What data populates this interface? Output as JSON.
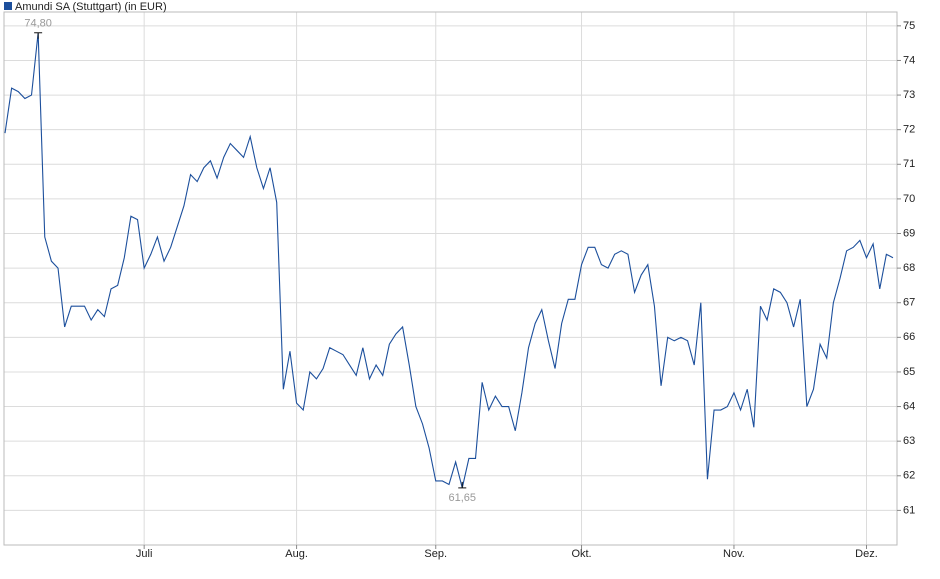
{
  "chart_data": {
    "type": "line",
    "categories": [
      null,
      null,
      null,
      null,
      null,
      null,
      null,
      null,
      null,
      null,
      null,
      null,
      null,
      null,
      null,
      null,
      null,
      null,
      null,
      null,
      null,
      "Juli",
      null,
      null,
      null,
      null,
      null,
      null,
      null,
      null,
      null,
      null,
      null,
      null,
      null,
      null,
      null,
      null,
      null,
      null,
      null,
      null,
      null,
      null,
      "Aug.",
      null,
      null,
      null,
      null,
      null,
      null,
      null,
      null,
      null,
      null,
      null,
      null,
      null,
      null,
      null,
      null,
      null,
      null,
      null,
      null,
      "Sep.",
      null,
      null,
      null,
      null,
      null,
      null,
      null,
      null,
      null,
      null,
      null,
      null,
      null,
      null,
      null,
      null,
      null,
      null,
      null,
      null,
      null,
      "Okt.",
      null,
      null,
      null,
      null,
      null,
      null,
      null,
      null,
      null,
      null,
      null,
      null,
      null,
      null,
      null,
      null,
      null,
      null,
      null,
      null,
      null,
      null,
      "Nov.",
      null,
      null,
      null,
      null,
      null,
      null,
      null,
      null,
      null,
      null,
      null,
      null,
      null,
      null,
      null,
      null,
      null,
      null,
      null,
      "Dez.",
      null,
      null,
      null,
      null
    ],
    "series": [
      {
        "name": "Amundi SA (Stuttgart) (in EUR)",
        "color": "#1c4f9c",
        "values": [
          71.9,
          73.2,
          73.1,
          72.9,
          73.0,
          74.8,
          68.9,
          68.2,
          68.0,
          66.3,
          66.9,
          66.9,
          66.9,
          66.5,
          66.8,
          66.6,
          67.4,
          67.5,
          68.3,
          69.5,
          69.4,
          68.0,
          68.4,
          68.9,
          68.2,
          68.6,
          69.2,
          69.8,
          70.7,
          70.5,
          70.9,
          71.1,
          70.6,
          71.2,
          71.6,
          71.4,
          71.2,
          71.8,
          70.9,
          70.3,
          70.9,
          69.9,
          64.5,
          65.6,
          64.1,
          63.9,
          65.0,
          64.8,
          65.1,
          65.7,
          65.6,
          65.5,
          65.2,
          64.9,
          65.7,
          64.8,
          65.2,
          64.9,
          65.8,
          66.1,
          66.3,
          65.2,
          64.0,
          63.5,
          62.8,
          61.85,
          61.85,
          61.75,
          62.4,
          61.65,
          62.5,
          62.5,
          64.7,
          63.9,
          64.3,
          64.0,
          64.0,
          63.3,
          64.4,
          65.7,
          66.4,
          66.8,
          65.9,
          65.1,
          66.4,
          67.1,
          67.1,
          68.1,
          68.6,
          68.6,
          68.1,
          68.0,
          68.4,
          68.5,
          68.4,
          67.3,
          67.8,
          68.1,
          66.9,
          64.6,
          66.0,
          65.9,
          66.0,
          65.9,
          65.2,
          67.0,
          61.9,
          63.9,
          63.9,
          64.0,
          64.4,
          63.9,
          64.5,
          63.4,
          66.9,
          66.5,
          67.4,
          67.3,
          67.0,
          66.3,
          67.1,
          64.0,
          64.5,
          65.8,
          65.4,
          67.0,
          67.7,
          68.5,
          68.6,
          68.8,
          68.3,
          68.7,
          67.4,
          68.4,
          68.3
        ],
        "value_labels": [
          null,
          null,
          null,
          null,
          null,
          "74,80",
          null,
          null,
          null,
          null,
          null,
          null,
          null,
          null,
          null,
          null,
          null,
          null,
          null,
          null,
          null,
          null,
          null,
          null,
          null,
          null,
          null,
          null,
          null,
          null,
          null,
          null,
          null,
          null,
          null,
          null,
          null,
          null,
          null,
          null,
          null,
          null,
          null,
          null,
          null,
          null,
          null,
          null,
          null,
          null,
          null,
          null,
          null,
          null,
          null,
          null,
          null,
          null,
          null,
          null,
          null,
          null,
          null,
          null,
          null,
          null,
          null,
          null,
          null,
          "61,65",
          null,
          null,
          null,
          null,
          null,
          null,
          null,
          null,
          null,
          null,
          null,
          null,
          null,
          null,
          null,
          null,
          null,
          null,
          null,
          null,
          null,
          null,
          null,
          null,
          null,
          null,
          null,
          null,
          null,
          null,
          null,
          null,
          null,
          null,
          null,
          null,
          null,
          null,
          null,
          null,
          null,
          null,
          null,
          null,
          null,
          null,
          null,
          null,
          null,
          null,
          null,
          null,
          null,
          null,
          null,
          null,
          null,
          null,
          null,
          null,
          null,
          null,
          null,
          null,
          null
        ]
      }
    ],
    "ylim": [
      60,
      75.4
    ],
    "yticks": [
      61,
      62,
      63,
      64,
      65,
      66,
      67,
      68,
      69,
      70,
      71,
      72,
      73,
      74,
      75
    ],
    "grid": true
  }
}
